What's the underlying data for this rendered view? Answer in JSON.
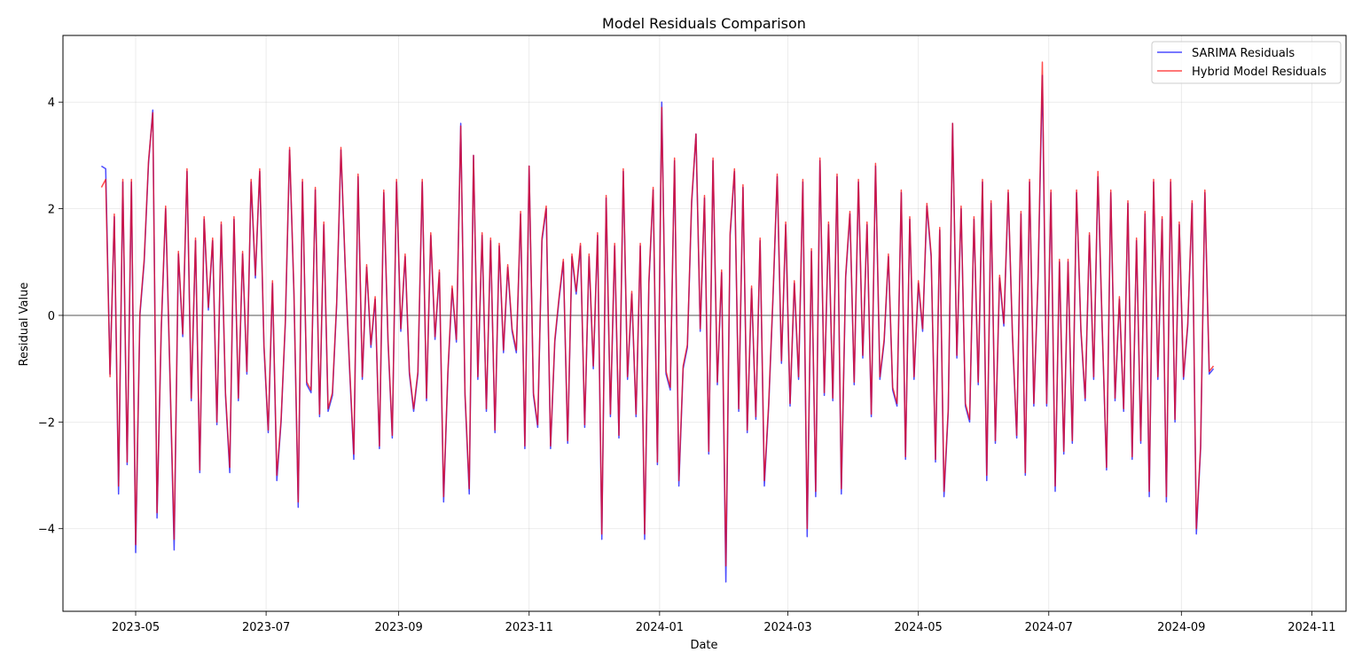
{
  "chart_data": {
    "type": "line",
    "title": "Model Residuals Comparison",
    "xlabel": "Date",
    "ylabel": "Residual Value",
    "x_range": [
      "2023-03-28",
      "2024-11-17"
    ],
    "ylim": [
      -5.55,
      5.25
    ],
    "x_ticks": [
      "2023-05",
      "2023-07",
      "2023-09",
      "2023-11",
      "2024-01",
      "2024-03",
      "2024-05",
      "2024-07",
      "2024-09",
      "2024-11"
    ],
    "y_ticks": [
      4,
      2,
      0,
      -2,
      -4
    ],
    "y_tick_labels": [
      "4",
      "2",
      "0",
      "−2",
      "−4"
    ],
    "grid": true,
    "zero_line": true,
    "legend_position": "top-right",
    "x_start": "2023-04-15",
    "x_step_days": 2,
    "series": [
      {
        "name": "SARIMA Residuals",
        "color": "#0000ff",
        "values": [
          2.8,
          2.75,
          -1.1,
          1.85,
          -3.35,
          2.5,
          -2.8,
          2.5,
          -4.45,
          0.0,
          1.0,
          2.85,
          3.85,
          -3.8,
          -0.25,
          2.0,
          -1.1,
          -4.4,
          1.15,
          -0.4,
          2.7,
          -1.6,
          1.4,
          -2.95,
          1.8,
          0.1,
          1.4,
          -2.05,
          1.7,
          -1.5,
          -2.95,
          1.8,
          -1.6,
          1.15,
          -1.1,
          2.5,
          0.7,
          2.7,
          -0.6,
          -2.2,
          0.6,
          -3.1,
          -2.0,
          -0.15,
          3.1,
          0.4,
          -3.6,
          2.5,
          -1.3,
          -1.45,
          2.35,
          -1.9,
          1.7,
          -1.8,
          -1.5,
          0.2,
          3.1,
          0.9,
          -1.0,
          -2.7,
          2.6,
          -1.2,
          0.9,
          -0.6,
          0.3,
          -2.5,
          2.3,
          -0.5,
          -2.3,
          2.5,
          -0.3,
          1.1,
          -1.1,
          -1.8,
          -1.1,
          2.5,
          -1.6,
          1.5,
          -0.45,
          0.8,
          -3.5,
          -1.1,
          0.5,
          -0.5,
          3.6,
          -1.5,
          -3.35,
          3.0,
          -1.2,
          1.5,
          -1.8,
          1.4,
          -2.2,
          1.3,
          -0.7,
          0.9,
          -0.3,
          -0.7,
          1.9,
          -2.5,
          2.8,
          -1.5,
          -2.1,
          1.4,
          2.0,
          -2.5,
          -0.5,
          0.3,
          1.0,
          -2.4,
          1.1,
          0.4,
          1.3,
          -2.1,
          1.1,
          -1.0,
          1.5,
          -4.2,
          2.2,
          -1.9,
          1.3,
          -2.3,
          2.7,
          -1.2,
          0.4,
          -1.9,
          1.3,
          -4.2,
          0.6,
          2.35,
          -2.8,
          4.0,
          -1.1,
          -1.4,
          2.9,
          -3.2,
          -1.0,
          -0.6,
          2.1,
          3.4,
          -0.3,
          2.2,
          -2.6,
          2.9,
          -1.3,
          0.8,
          -5.0,
          1.5,
          2.7,
          -1.8,
          2.4,
          -2.2,
          0.5,
          -1.95,
          1.4,
          -3.2,
          -1.7,
          0.3,
          2.6,
          -0.9,
          1.7,
          -1.7,
          0.6,
          -1.2,
          2.5,
          -4.15,
          1.2,
          -3.4,
          2.9,
          -1.5,
          1.7,
          -1.6,
          2.6,
          -3.35,
          0.7,
          1.9,
          -1.3,
          2.5,
          -0.8,
          1.7,
          -1.9,
          2.8,
          -1.2,
          -0.5,
          1.1,
          -1.4,
          -1.7,
          2.3,
          -2.7,
          1.8,
          -1.2,
          0.6,
          -0.3,
          2.05,
          1.1,
          -2.75,
          1.6,
          -3.4,
          -1.8,
          3.6,
          -0.8,
          2.0,
          -1.7,
          -2.0,
          1.8,
          -1.3,
          2.5,
          -3.1,
          2.1,
          -2.4,
          0.7,
          -0.2,
          2.3,
          -0.4,
          -2.3,
          1.9,
          -3.0,
          2.5,
          -1.7,
          0.7,
          4.5,
          -1.7,
          2.3,
          -3.3,
          1.0,
          -2.6,
          1.0,
          -2.4,
          2.3,
          -0.3,
          -1.6,
          1.5,
          -1.2,
          2.6,
          -0.3,
          -2.9,
          2.3,
          -1.6,
          0.3,
          -1.8,
          2.1,
          -2.7,
          1.4,
          -2.4,
          1.9,
          -3.4,
          2.5,
          -1.2,
          1.8,
          -3.5,
          2.5,
          -2.0,
          1.7,
          -1.2,
          -0.2,
          2.1,
          -4.1,
          -2.5,
          2.3,
          -1.1,
          -1.0
        ]
      },
      {
        "name": "Hybrid Model Residuals",
        "color": "#ff0000",
        "values": [
          2.4,
          2.55,
          -1.15,
          1.9,
          -3.2,
          2.55,
          -2.75,
          2.55,
          -4.3,
          0.05,
          1.05,
          2.9,
          3.8,
          -3.7,
          -0.2,
          2.05,
          -1.05,
          -4.2,
          1.2,
          -0.35,
          2.75,
          -1.55,
          1.45,
          -2.9,
          1.85,
          0.15,
          1.45,
          -2.0,
          1.75,
          -1.45,
          -2.85,
          1.85,
          -1.55,
          1.2,
          -1.05,
          2.55,
          0.75,
          2.75,
          -0.55,
          -2.15,
          0.65,
          -3.0,
          -1.95,
          -0.1,
          3.15,
          0.45,
          -3.5,
          2.55,
          -1.25,
          -1.4,
          2.4,
          -1.85,
          1.75,
          -1.75,
          -1.45,
          0.25,
          3.15,
          0.95,
          -0.95,
          -2.6,
          2.65,
          -1.15,
          0.95,
          -0.55,
          0.35,
          -2.45,
          2.35,
          -0.45,
          -2.25,
          2.55,
          -0.25,
          1.15,
          -1.05,
          -1.75,
          -1.05,
          2.55,
          -1.55,
          1.55,
          -0.4,
          0.85,
          -3.4,
          -1.05,
          0.55,
          -0.45,
          3.55,
          -1.45,
          -3.25,
          3.0,
          -1.15,
          1.55,
          -1.75,
          1.45,
          -2.15,
          1.35,
          -0.65,
          0.95,
          -0.25,
          -0.65,
          1.95,
          -2.45,
          2.8,
          -1.45,
          -2.05,
          1.45,
          2.05,
          -2.45,
          -0.45,
          0.35,
          1.05,
          -2.35,
          1.15,
          0.45,
          1.35,
          -2.05,
          1.15,
          -0.95,
          1.55,
          -4.1,
          2.25,
          -1.85,
          1.35,
          -2.25,
          2.75,
          -1.15,
          0.45,
          -1.85,
          1.35,
          -4.1,
          0.65,
          2.4,
          -2.75,
          3.9,
          -1.05,
          -1.35,
          2.95,
          -3.1,
          -0.95,
          -0.55,
          2.15,
          3.4,
          -0.25,
          2.25,
          -2.55,
          2.95,
          -1.25,
          0.85,
          -4.7,
          1.55,
          2.75,
          -1.75,
          2.45,
          -2.15,
          0.55,
          -1.9,
          1.45,
          -3.1,
          -1.65,
          0.35,
          2.65,
          -0.85,
          1.75,
          -1.65,
          0.65,
          -1.15,
          2.55,
          -4.0,
          1.25,
          -3.3,
          2.95,
          -1.45,
          1.75,
          -1.55,
          2.65,
          -3.25,
          0.75,
          1.95,
          -1.25,
          2.55,
          -0.75,
          1.75,
          -1.85,
          2.85,
          -1.15,
          -0.45,
          1.15,
          -1.35,
          -1.65,
          2.35,
          -2.65,
          1.85,
          -1.15,
          0.65,
          -0.25,
          2.1,
          1.15,
          -2.7,
          1.65,
          -3.3,
          -1.75,
          3.6,
          -0.75,
          2.05,
          -1.65,
          -1.95,
          1.85,
          -1.25,
          2.55,
          -3.0,
          2.15,
          -2.35,
          0.75,
          -0.15,
          2.35,
          -0.35,
          -2.25,
          1.95,
          -2.95,
          2.55,
          -1.65,
          0.75,
          4.75,
          -1.65,
          2.35,
          -3.2,
          1.05,
          -2.55,
          1.05,
          -2.35,
          2.35,
          -0.25,
          -1.55,
          1.55,
          -1.15,
          2.7,
          -0.25,
          -2.85,
          2.35,
          -1.55,
          0.35,
          -1.75,
          2.15,
          -2.65,
          1.45,
          -2.35,
          1.95,
          -3.3,
          2.55,
          -1.15,
          1.85,
          -3.4,
          2.55,
          -1.95,
          1.75,
          -1.15,
          -0.15,
          2.15,
          -4.0,
          -2.45,
          2.35,
          -1.05,
          -0.95
        ]
      }
    ]
  }
}
